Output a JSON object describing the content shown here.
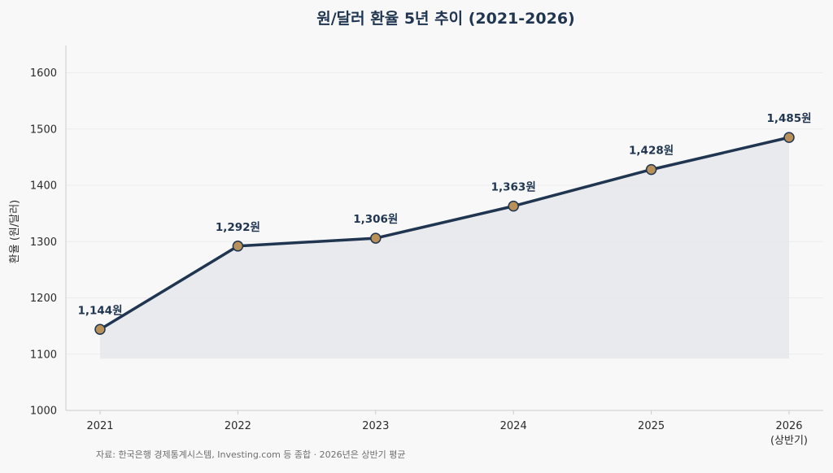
{
  "chart_data": {
    "type": "line",
    "title": "원/달러 환율 5년 추이 (2021-2026)",
    "ylabel": "환율 (원/달러)",
    "xlabel": "",
    "categories": [
      "2021",
      "2022",
      "2023",
      "2024",
      "2025",
      "2026"
    ],
    "category_sublabels": [
      "",
      "",
      "",
      "",
      "",
      "(상반기)"
    ],
    "series": [
      {
        "values": [
          1144,
          1292,
          1306,
          1363,
          1428,
          1485
        ],
        "data_labels": [
          "1,144원",
          "1,292원",
          "1,306원",
          "1,363원",
          "1,428원",
          "1,485원"
        ]
      }
    ],
    "ylim": [
      1000,
      1650
    ],
    "yticks": [
      1000,
      1100,
      1200,
      1300,
      1400,
      1500,
      1600
    ],
    "grid": true,
    "legend": "none",
    "area_fill": true,
    "colors": {
      "line": "#1f3550",
      "marker_fill": "#b99158",
      "marker_stroke": "#1f3550",
      "area": "#e6e8eb",
      "grid": "#ececec",
      "axis": "#cccccc",
      "background": "#f8f8f8"
    },
    "source": "자료: 한국은행 경제통계시스템, Investing.com 등 종합 · 2026년은 상반기 평균"
  }
}
